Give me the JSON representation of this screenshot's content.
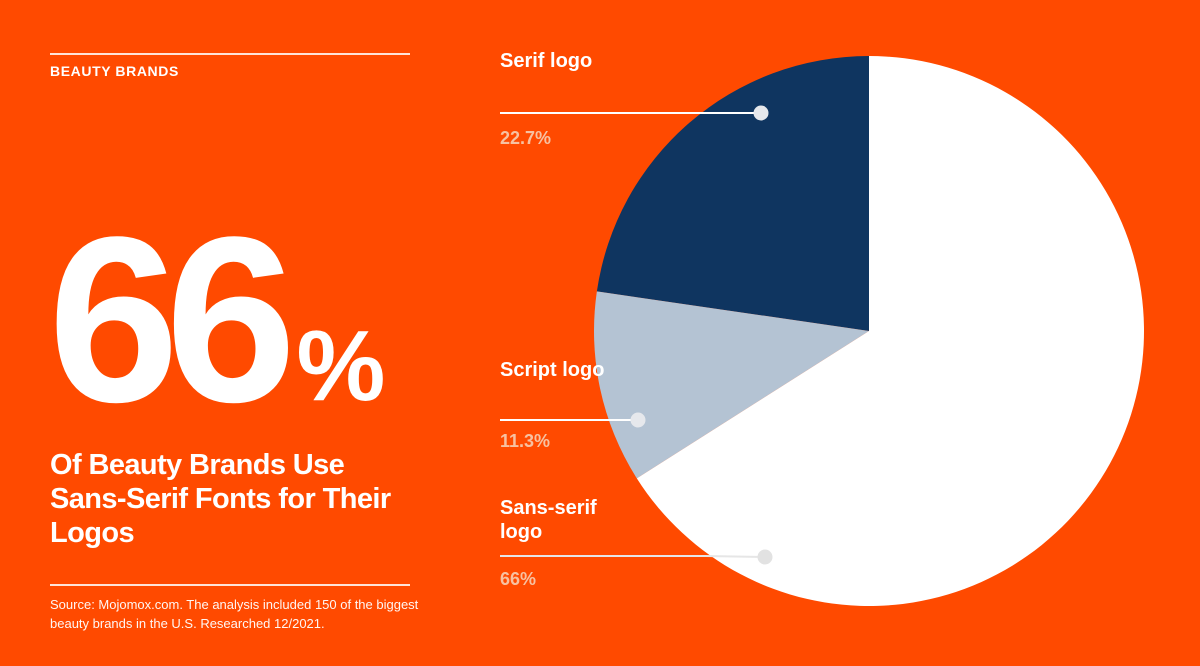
{
  "header": {
    "eyebrow": "BEAUTY BRANDS"
  },
  "hero": {
    "number": "66",
    "percent_sign": "%",
    "headline": "Of Beauty Brands Use Sans-Serif Fonts for Their Logos"
  },
  "footer": {
    "source": "Source: Mojomox.com. The analysis included 150 of the biggest beauty brands in the U.S. Researched 12/2021."
  },
  "colors": {
    "background": "#ff4a00",
    "serif": "#0f3560",
    "script": "#b4c3d3",
    "sans_serif": "#ffffff",
    "value_text": "#f7c1a1"
  },
  "chart_data": {
    "type": "pie",
    "slices": [
      {
        "name": "Serif logo",
        "value": 22.7,
        "label": "22.7%"
      },
      {
        "name": "Script logo",
        "value": 11.3,
        "label": "11.3%"
      },
      {
        "name": "Sans-serif logo",
        "value": 66,
        "label": "66%"
      }
    ],
    "start_angle_deg": 0,
    "direction": "counterclockwise"
  },
  "labels": [
    {
      "name": "Serif logo",
      "value": "22.7%"
    },
    {
      "name": "Script logo",
      "value": "11.3%"
    },
    {
      "name": "Sans-serif logo",
      "value": "66%"
    }
  ]
}
